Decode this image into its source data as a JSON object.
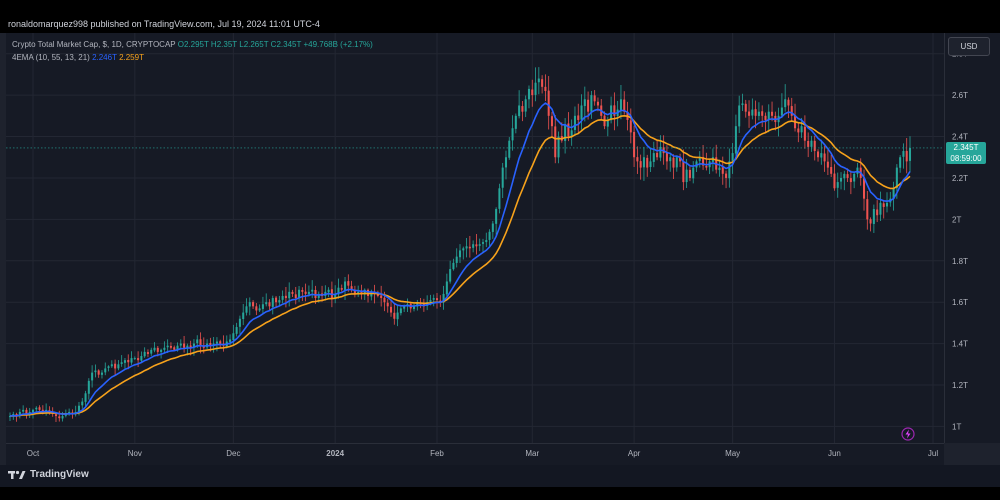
{
  "publish_line": "ronaldomarquez998 published on TradingView.com, Jul 19, 2024 11:01 UTC-4",
  "legend": {
    "symbol": "Crypto Total Market Cap, $, 1D, CRYPTOCAP",
    "ohlc": "O2.295T H2.35T L2.265T C2.345T",
    "change": "+49.768B (+2.17%)",
    "indicator": "4EMA (10, 55, 13, 21)",
    "ema_fast": "2.246T",
    "ema_slow": "2.259T"
  },
  "currency_button": "USD",
  "last_price": {
    "value": "2.345T",
    "countdown": "08:59:00"
  },
  "footer_brand": "TradingView",
  "colors": {
    "up": "#26a69a",
    "down": "#ef5350",
    "ema_fast": "#2962ff",
    "ema_slow": "#f7a21b"
  },
  "chart_data": {
    "type": "candlestick",
    "y_unit": "T",
    "ylim": [
      0.92,
      2.9
    ],
    "y_ticks": [
      {
        "value": 1.0,
        "label": "1T"
      },
      {
        "value": 1.2,
        "label": "1.2T"
      },
      {
        "value": 1.4,
        "label": "1.4T"
      },
      {
        "value": 1.6,
        "label": "1.6T"
      },
      {
        "value": 1.8,
        "label": "1.8T"
      },
      {
        "value": 2.0,
        "label": "2T"
      },
      {
        "value": 2.2,
        "label": "2.2T"
      },
      {
        "value": 2.4,
        "label": "2.4T"
      },
      {
        "value": 2.6,
        "label": "2.6T"
      },
      {
        "value": 2.8,
        "label": "2.8T"
      }
    ],
    "x_ticks": [
      {
        "label": "Oct",
        "bar": 7
      },
      {
        "label": "Nov",
        "bar": 38
      },
      {
        "label": "Dec",
        "bar": 68
      },
      {
        "label": "2024",
        "bar": 99
      },
      {
        "label": "Feb",
        "bar": 130
      },
      {
        "label": "Mar",
        "bar": 159
      },
      {
        "label": "Apr",
        "bar": 190
      },
      {
        "label": "May",
        "bar": 220
      },
      {
        "label": "Jun",
        "bar": 251
      },
      {
        "label": "Jul",
        "bar": 281
      }
    ],
    "series": [
      {
        "name": "Crypto Total Market Cap, $, 1D, CRYPTOCAP",
        "type": "candles",
        "close": [
          1.05,
          1.06,
          1.05,
          1.07,
          1.08,
          1.06,
          1.07,
          1.08,
          1.09,
          1.08,
          1.07,
          1.08,
          1.07,
          1.06,
          1.05,
          1.04,
          1.05,
          1.06,
          1.07,
          1.06,
          1.07,
          1.1,
          1.12,
          1.16,
          1.22,
          1.26,
          1.27,
          1.25,
          1.26,
          1.28,
          1.29,
          1.3,
          1.28,
          1.3,
          1.31,
          1.32,
          1.31,
          1.33,
          1.33,
          1.32,
          1.34,
          1.36,
          1.35,
          1.37,
          1.38,
          1.36,
          1.37,
          1.38,
          1.39,
          1.38,
          1.37,
          1.39,
          1.4,
          1.38,
          1.39,
          1.38,
          1.4,
          1.42,
          1.39,
          1.38,
          1.4,
          1.39,
          1.4,
          1.41,
          1.4,
          1.39,
          1.41,
          1.42,
          1.45,
          1.48,
          1.52,
          1.55,
          1.58,
          1.6,
          1.58,
          1.56,
          1.57,
          1.59,
          1.6,
          1.58,
          1.62,
          1.6,
          1.61,
          1.63,
          1.62,
          1.65,
          1.64,
          1.62,
          1.66,
          1.65,
          1.64,
          1.65,
          1.66,
          1.62,
          1.64,
          1.63,
          1.65,
          1.66,
          1.62,
          1.64,
          1.67,
          1.66,
          1.7,
          1.68,
          1.66,
          1.64,
          1.65,
          1.64,
          1.66,
          1.63,
          1.65,
          1.64,
          1.63,
          1.62,
          1.6,
          1.58,
          1.55,
          1.52,
          1.55,
          1.57,
          1.58,
          1.59,
          1.57,
          1.58,
          1.6,
          1.59,
          1.58,
          1.6,
          1.61,
          1.62,
          1.61,
          1.6,
          1.64,
          1.7,
          1.76,
          1.79,
          1.82,
          1.85,
          1.86,
          1.87,
          1.86,
          1.88,
          1.87,
          1.88,
          1.89,
          1.9,
          1.94,
          1.98,
          2.05,
          2.15,
          2.25,
          2.3,
          2.38,
          2.44,
          2.5,
          2.55,
          2.52,
          2.58,
          2.63,
          2.6,
          2.66,
          2.68,
          2.64,
          2.62,
          2.5,
          2.45,
          2.3,
          2.4,
          2.38,
          2.46,
          2.4,
          2.43,
          2.5,
          2.48,
          2.55,
          2.58,
          2.52,
          2.6,
          2.57,
          2.55,
          2.5,
          2.45,
          2.48,
          2.55,
          2.5,
          2.53,
          2.58,
          2.52,
          2.48,
          2.42,
          2.3,
          2.28,
          2.25,
          2.3,
          2.25,
          2.28,
          2.32,
          2.3,
          2.35,
          2.32,
          2.28,
          2.3,
          2.25,
          2.3,
          2.28,
          2.18,
          2.24,
          2.2,
          2.25,
          2.28,
          2.3,
          2.26,
          2.25,
          2.28,
          2.3,
          2.24,
          2.25,
          2.22,
          2.2,
          2.28,
          2.32,
          2.45,
          2.55,
          2.56,
          2.52,
          2.5,
          2.53,
          2.5,
          2.52,
          2.5,
          2.48,
          2.52,
          2.5,
          2.47,
          2.5,
          2.54,
          2.58,
          2.55,
          2.5,
          2.44,
          2.42,
          2.45,
          2.38,
          2.35,
          2.38,
          2.33,
          2.3,
          2.32,
          2.28,
          2.25,
          2.22,
          2.15,
          2.18,
          2.2,
          2.22,
          2.2,
          2.18,
          2.22,
          2.25,
          2.2,
          2.1,
          2.0,
          1.98,
          2.05,
          2.02,
          2.08,
          2.06,
          2.08,
          2.1,
          2.15,
          2.25,
          2.3,
          2.33,
          2.28,
          2.345
        ]
      },
      {
        "name": "EMA 10",
        "type": "line",
        "color": "#2962ff"
      },
      {
        "name": "EMA 55",
        "type": "line",
        "color": "#f7a21b"
      }
    ]
  }
}
